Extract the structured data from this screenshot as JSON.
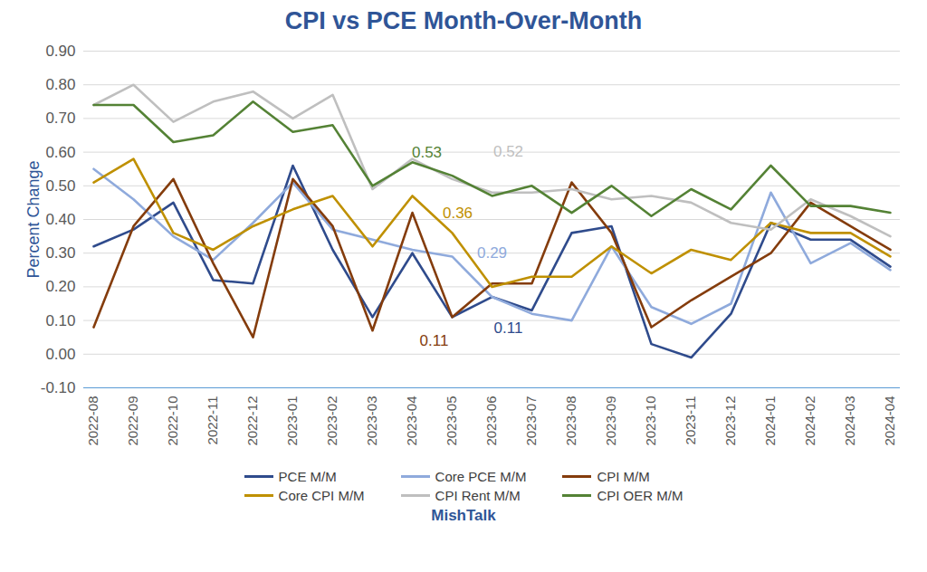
{
  "chart_data": {
    "type": "line",
    "title": "CPI vs PCE Month-Over-Month",
    "y_label": "Percent Change",
    "caption": "MishTalk",
    "x": [
      "2022-08",
      "2022-09",
      "2022-10",
      "2022-11",
      "2022-12",
      "2023-01",
      "2023-02",
      "2023-03",
      "2023-04",
      "2023-05",
      "2023-06",
      "2023-07",
      "2023-08",
      "2023-09",
      "2023-10",
      "2023-11",
      "2023-12",
      "2024-01",
      "2024-02",
      "2024-03",
      "2024-04"
    ],
    "series": [
      {
        "name": "PCE M/M",
        "color": "#2f4b8c",
        "values": [
          0.32,
          0.37,
          0.45,
          0.22,
          0.21,
          0.56,
          0.31,
          0.11,
          0.3,
          0.11,
          0.17,
          0.13,
          0.36,
          0.38,
          0.03,
          -0.01,
          0.12,
          0.39,
          0.34,
          0.34,
          0.26
        ]
      },
      {
        "name": "Core PCE M/M",
        "color": "#8faadc",
        "values": [
          0.55,
          0.46,
          0.35,
          0.28,
          0.39,
          0.51,
          0.37,
          0.34,
          0.31,
          0.29,
          0.17,
          0.12,
          0.1,
          0.32,
          0.14,
          0.09,
          0.15,
          0.48,
          0.27,
          0.33,
          0.25
        ]
      },
      {
        "name": "CPI M/M",
        "color": "#843c0c",
        "values": [
          0.08,
          0.38,
          0.52,
          0.27,
          0.05,
          0.52,
          0.38,
          0.07,
          0.42,
          0.11,
          0.21,
          0.21,
          0.51,
          0.36,
          0.08,
          0.16,
          0.23,
          0.3,
          0.45,
          0.38,
          0.31
        ]
      },
      {
        "name": "Core CPI M/M",
        "color": "#bf9000",
        "values": [
          0.51,
          0.58,
          0.36,
          0.31,
          0.38,
          0.43,
          0.47,
          0.32,
          0.47,
          0.36,
          0.2,
          0.23,
          0.23,
          0.32,
          0.24,
          0.31,
          0.28,
          0.39,
          0.36,
          0.36,
          0.29
        ]
      },
      {
        "name": "CPI Rent M/M",
        "color": "#bfbfbf",
        "values": [
          0.74,
          0.8,
          0.69,
          0.75,
          0.78,
          0.7,
          0.77,
          0.49,
          0.58,
          0.52,
          0.48,
          0.48,
          0.49,
          0.46,
          0.47,
          0.45,
          0.39,
          0.37,
          0.46,
          0.41,
          0.35
        ]
      },
      {
        "name": "CPI OER M/M",
        "color": "#548235",
        "values": [
          0.74,
          0.74,
          0.63,
          0.65,
          0.75,
          0.66,
          0.68,
          0.5,
          0.57,
          0.53,
          0.47,
          0.5,
          0.42,
          0.5,
          0.41,
          0.49,
          0.43,
          0.56,
          0.44,
          0.44,
          0.42
        ]
      }
    ],
    "annotations": [
      {
        "series": "CPI OER M/M",
        "x": "2023-05",
        "label": "0.53"
      },
      {
        "series": "CPI Rent M/M",
        "x": "2023-05",
        "label": "0.52"
      },
      {
        "series": "Core CPI M/M",
        "x": "2023-05",
        "label": "0.36"
      },
      {
        "series": "Core PCE M/M",
        "x": "2023-05",
        "label": "0.29"
      },
      {
        "series": "CPI M/M",
        "x": "2023-05",
        "label": "0.11"
      },
      {
        "series": "PCE M/M",
        "x": "2023-05",
        "label": "0.11"
      }
    ],
    "ylim": [
      -0.1,
      0.9
    ],
    "yticks": [
      {
        "value": -0.1,
        "label": "-0.10"
      },
      {
        "value": 0,
        "label": "0.00"
      },
      {
        "value": 0.1,
        "label": "0.10"
      },
      {
        "value": 0.2,
        "label": "0.20"
      },
      {
        "value": 0.3,
        "label": "0.30"
      },
      {
        "value": 0.4,
        "label": "0.40"
      },
      {
        "value": 0.5,
        "label": "0.50"
      },
      {
        "value": 0.6,
        "label": "0.60"
      },
      {
        "value": 0.7,
        "label": "0.70"
      },
      {
        "value": 0.8,
        "label": "0.80"
      },
      {
        "value": 0.9,
        "label": "0.90"
      }
    ],
    "grid": true,
    "legend": "bottom"
  }
}
